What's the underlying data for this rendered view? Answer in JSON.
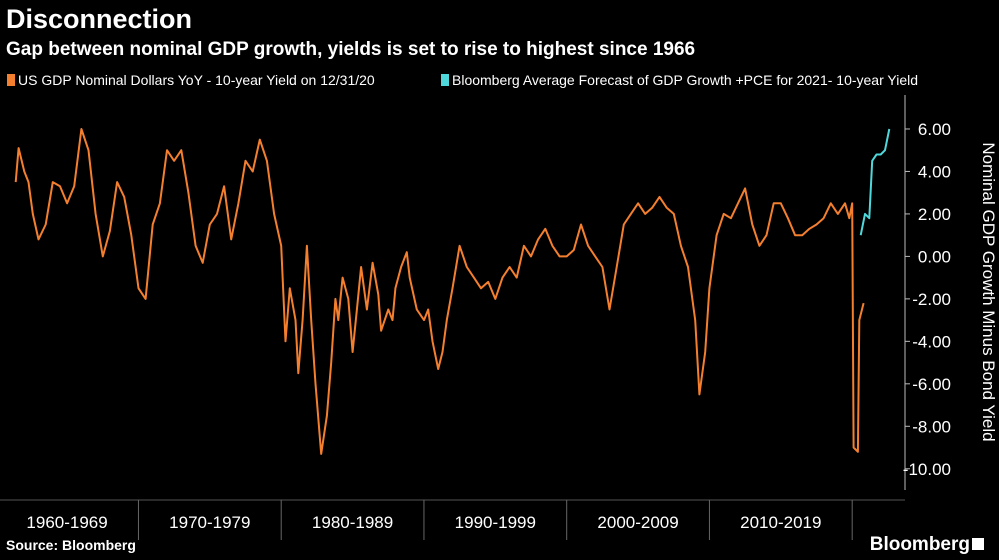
{
  "chart_data": {
    "type": "line",
    "title": "Disconnection",
    "subtitle": "Gap between nominal GDP growth, yields is set to rise to highest since 1966",
    "y_label": "Nominal GDP Growth Minus Bond Yield",
    "source": "Source: Bloomberg",
    "brand": "Bloomberg",
    "xlim": [
      1960.3,
      2023.7
    ],
    "xticks": [
      {
        "value": 1965,
        "label": "1960-1969"
      },
      {
        "value": 1975,
        "label": "1970-1979"
      },
      {
        "value": 1985,
        "label": "1980-1989"
      },
      {
        "value": 1995,
        "label": "1990-1999"
      },
      {
        "value": 2005,
        "label": "2000-2009"
      },
      {
        "value": 2015,
        "label": "2010-2019"
      }
    ],
    "ylim": [
      -11,
      7.6
    ],
    "yticks": [
      {
        "value": -10,
        "label": "-10.00"
      },
      {
        "value": -8,
        "label": "-8.00"
      },
      {
        "value": -6,
        "label": "-6.00"
      },
      {
        "value": -4,
        "label": "-4.00"
      },
      {
        "value": -2,
        "label": "-2.00"
      },
      {
        "value": 0,
        "label": "0.00"
      },
      {
        "value": 2,
        "label": "2.00"
      },
      {
        "value": 4,
        "label": "4.00"
      },
      {
        "value": 6,
        "label": "6.00"
      }
    ],
    "series": [
      {
        "name": "US GDP Nominal Dollars YoY - 10-year Yield on 12/31/20",
        "color": "#f47f2f",
        "x": [
          1961.4,
          1961.6,
          1962.0,
          1962.3,
          1962.6,
          1963.0,
          1963.5,
          1964.0,
          1964.5,
          1965.0,
          1965.5,
          1966.0,
          1966.5,
          1967.0,
          1967.5,
          1968.0,
          1968.5,
          1969.0,
          1969.5,
          1970.0,
          1970.5,
          1971.0,
          1971.5,
          1972.0,
          1972.5,
          1973.0,
          1973.5,
          1974.0,
          1974.5,
          1975.0,
          1975.5,
          1976.0,
          1976.5,
          1977.0,
          1977.5,
          1978.0,
          1978.5,
          1979.0,
          1979.5,
          1980.0,
          1980.3,
          1980.6,
          1981.0,
          1981.2,
          1981.5,
          1981.8,
          1982.1,
          1982.4,
          1982.8,
          1983.2,
          1983.5,
          1983.8,
          1984.0,
          1984.3,
          1984.7,
          1985.0,
          1985.3,
          1985.6,
          1986.0,
          1986.4,
          1986.8,
          1987.0,
          1987.5,
          1987.8,
          1988.0,
          1988.4,
          1988.8,
          1989.0,
          1989.5,
          1990.0,
          1990.3,
          1990.6,
          1991.0,
          1991.3,
          1991.6,
          1992.0,
          1992.5,
          1993.0,
          1993.5,
          1994.0,
          1994.5,
          1995.0,
          1995.5,
          1996.0,
          1996.5,
          1997.0,
          1997.5,
          1998.0,
          1998.5,
          1999.0,
          1999.5,
          2000.0,
          2000.5,
          2001.0,
          2001.5,
          2002.0,
          2002.5,
          2003.0,
          2003.5,
          2004.0,
          2004.5,
          2005.0,
          2005.5,
          2006.0,
          2006.5,
          2007.0,
          2007.5,
          2008.0,
          2008.5,
          2009.0,
          2009.3,
          2009.7,
          2010.0,
          2010.5,
          2011.0,
          2011.5,
          2012.0,
          2012.5,
          2013.0,
          2013.5,
          2014.0,
          2014.5,
          2015.0,
          2015.5,
          2016.0,
          2016.5,
          2017.0,
          2017.5,
          2018.0,
          2018.5,
          2019.0,
          2019.5,
          2019.8,
          2020.0,
          2020.1,
          2020.4,
          2020.5,
          2020.8
        ],
        "values": [
          3.5,
          5.1,
          4.0,
          3.5,
          2.0,
          0.8,
          1.5,
          3.5,
          3.3,
          2.5,
          3.3,
          6.0,
          5.0,
          2.0,
          0.0,
          1.2,
          3.5,
          2.8,
          1.0,
          -1.5,
          -2.0,
          1.5,
          2.5,
          5.0,
          4.5,
          5.0,
          3.0,
          0.5,
          -0.3,
          1.5,
          2.0,
          3.3,
          0.8,
          2.5,
          4.5,
          4.0,
          5.5,
          4.5,
          2.0,
          0.5,
          -4.0,
          -1.5,
          -3.0,
          -5.5,
          -3.0,
          0.5,
          -3.0,
          -6.0,
          -9.3,
          -7.5,
          -5.0,
          -2.0,
          -3.0,
          -1.0,
          -2.0,
          -4.5,
          -2.5,
          -0.5,
          -2.5,
          -0.3,
          -1.8,
          -3.5,
          -2.5,
          -3.0,
          -1.5,
          -0.5,
          0.2,
          -1.0,
          -2.5,
          -3.0,
          -2.5,
          -4.0,
          -5.3,
          -4.5,
          -3.0,
          -1.5,
          0.5,
          -0.5,
          -1.0,
          -1.5,
          -1.2,
          -2.0,
          -1.0,
          -0.5,
          -1.0,
          0.5,
          0.0,
          0.8,
          1.3,
          0.5,
          0.0,
          0.0,
          0.3,
          1.5,
          0.5,
          0.0,
          -0.5,
          -2.5,
          -0.5,
          1.5,
          2.0,
          2.5,
          2.0,
          2.3,
          2.8,
          2.3,
          2.0,
          0.5,
          -0.5,
          -3.0,
          -6.5,
          -4.5,
          -1.5,
          1.0,
          2.0,
          1.8,
          2.5,
          3.2,
          1.5,
          0.5,
          1.0,
          2.5,
          2.5,
          1.8,
          1.0,
          1.0,
          1.3,
          1.5,
          1.8,
          2.5,
          2.0,
          2.5,
          1.8,
          2.5,
          -9.0,
          -9.2,
          -3.0,
          -2.2
        ]
      },
      {
        "name": "Bloomberg Average Forecast of GDP Growth +PCE for 2021- 10-year Yield",
        "color": "#4fd8dc",
        "x": [
          2020.6,
          2020.9,
          2021.2,
          2021.4,
          2021.7,
          2022.0,
          2022.3,
          2022.6
        ],
        "values": [
          1.0,
          2.0,
          1.8,
          4.5,
          4.8,
          4.8,
          5.0,
          6.0
        ]
      }
    ]
  }
}
